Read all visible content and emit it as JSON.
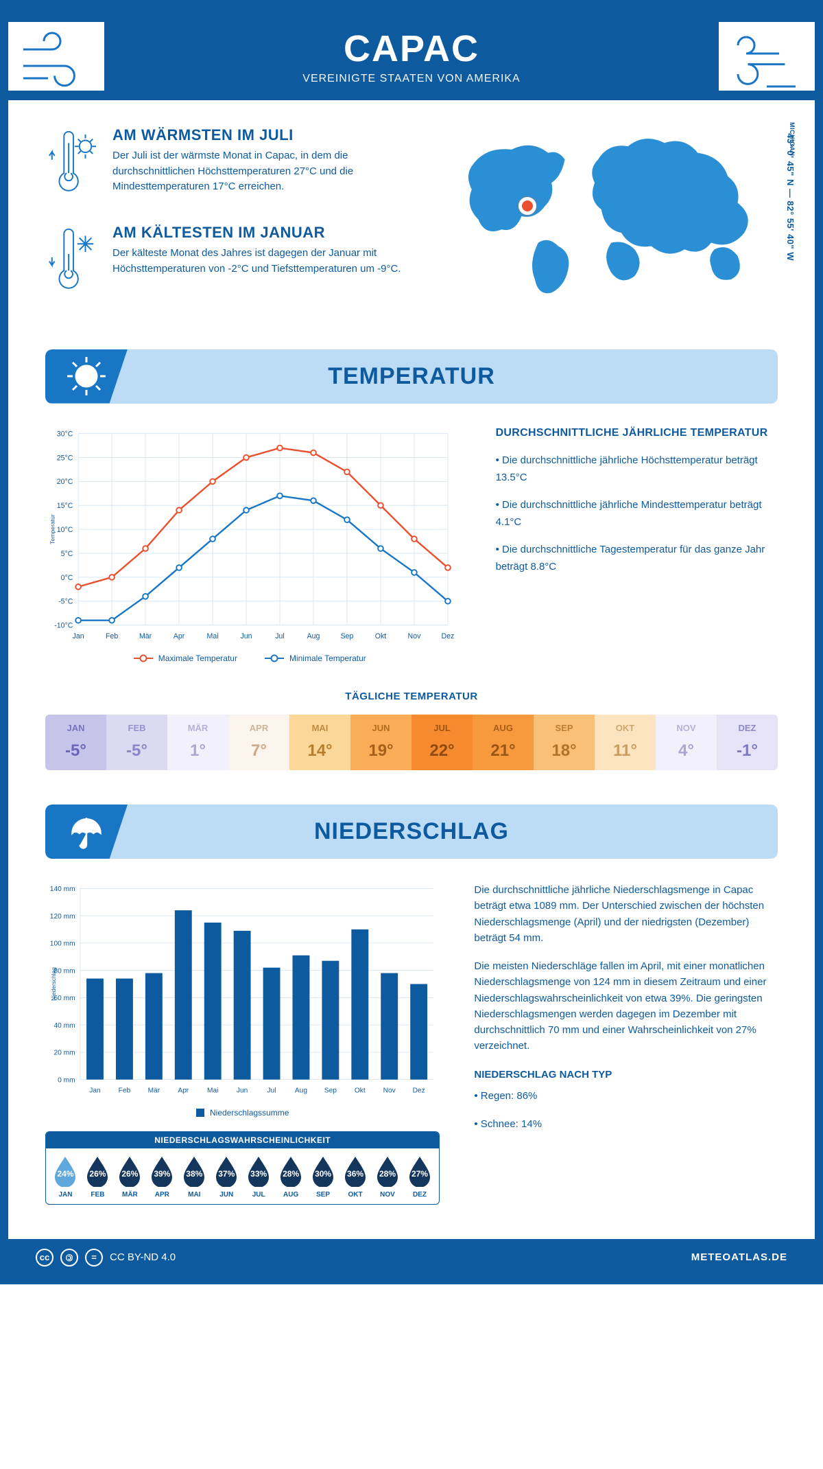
{
  "header": {
    "title": "CAPAC",
    "subtitle": "VEREINIGTE STAATEN VON AMERIKA"
  },
  "location": {
    "coords": "43° 0' 45\" N — 82° 55' 40\" W",
    "region": "MICHIGAN",
    "pin_color": "#e8502f"
  },
  "colors": {
    "brand": "#0e5a9e",
    "brand_light": "#1976c5",
    "banner_bg": "#bcdcf6",
    "max_line": "#e8502f",
    "min_line": "#1976c5",
    "grid": "#d9e6f2"
  },
  "facts": {
    "warm": {
      "title": "AM WÄRMSTEN IM JULI",
      "text": "Der Juli ist der wärmste Monat in Capac, in dem die durchschnittlichen Höchsttemperaturen 27°C und die Mindesttemperaturen 17°C erreichen."
    },
    "cold": {
      "title": "AM KÄLTESTEN IM JANUAR",
      "text": "Der kälteste Monat des Jahres ist dagegen der Januar mit Höchsttemperaturen von -2°C und Tiefsttemperaturen um -9°C."
    }
  },
  "sections": {
    "temperature": "TEMPERATUR",
    "precip": "NIEDERSCHLAG"
  },
  "temp_chart": {
    "ylabel": "Temperatur",
    "ylim": [
      -10,
      30
    ],
    "ytick_step": 5,
    "months": [
      "Jan",
      "Feb",
      "Mär",
      "Apr",
      "Mai",
      "Jun",
      "Jul",
      "Aug",
      "Sep",
      "Okt",
      "Nov",
      "Dez"
    ],
    "max_values": [
      -2,
      0,
      6,
      14,
      20,
      25,
      27,
      26,
      22,
      15,
      8,
      2
    ],
    "min_values": [
      -9,
      -9,
      -4,
      2,
      8,
      14,
      17,
      16,
      12,
      6,
      1,
      -5
    ],
    "legend_max": "Maximale Temperatur",
    "legend_min": "Minimale Temperatur",
    "line_width": 2.5,
    "marker_size": 4
  },
  "temp_text": {
    "title": "DURCHSCHNITTLICHE JÄHRLICHE TEMPERATUR",
    "b1": "• Die durchschnittliche jährliche Höchsttemperatur beträgt 13.5°C",
    "b2": "• Die durchschnittliche jährliche Mindesttemperatur beträgt 4.1°C",
    "b3": "• Die durchschnittliche Tagestemperatur für das ganze Jahr beträgt 8.8°C"
  },
  "daily_temp": {
    "title": "TÄGLICHE TEMPERATUR",
    "months": [
      "JAN",
      "FEB",
      "MÄR",
      "APR",
      "MAI",
      "JUN",
      "JUL",
      "AUG",
      "SEP",
      "OKT",
      "NOV",
      "DEZ"
    ],
    "values": [
      "-5°",
      "-5°",
      "1°",
      "7°",
      "14°",
      "19°",
      "22°",
      "21°",
      "18°",
      "11°",
      "4°",
      "-1°"
    ],
    "bg_colors": [
      "#c7c4ea",
      "#dcdaf2",
      "#f2f0fa",
      "#faf4ec",
      "#fcd79a",
      "#faad56",
      "#f58b2e",
      "#f79a3e",
      "#fbc077",
      "#fde4c0",
      "#f2f0fa",
      "#e5e3f5"
    ],
    "text_colors": [
      "#6a65b8",
      "#8a86c9",
      "#a9a6d4",
      "#c9a989",
      "#b77f2d",
      "#a6601a",
      "#8f4a10",
      "#9a5515",
      "#b07428",
      "#c99c60",
      "#a9a6d4",
      "#7e7ac2"
    ]
  },
  "precip_chart": {
    "ylabel": "Niederschlag",
    "ylim": [
      0,
      140
    ],
    "ytick_step": 20,
    "months": [
      "Jan",
      "Feb",
      "Mär",
      "Apr",
      "Mai",
      "Jun",
      "Jul",
      "Aug",
      "Sep",
      "Okt",
      "Nov",
      "Dez"
    ],
    "values": [
      74,
      74,
      78,
      124,
      115,
      109,
      82,
      91,
      87,
      110,
      78,
      70
    ],
    "bar_color": "#0e5a9e",
    "legend": "Niederschlagssumme"
  },
  "precip_text": {
    "p1": "Die durchschnittliche jährliche Niederschlagsmenge in Capac beträgt etwa 1089 mm. Der Unterschied zwischen der höchsten Niederschlagsmenge (April) und der niedrigsten (Dezember) beträgt 54 mm.",
    "p2": "Die meisten Niederschläge fallen im April, mit einer monatlichen Niederschlagsmenge von 124 mm in diesem Zeitraum und einer Niederschlagswahrscheinlichkeit von etwa 39%. Die geringsten Niederschlagsmengen werden dagegen im Dezember mit durchschnittlich 70 mm und einer Wahrscheinlichkeit von 27% verzeichnet.",
    "type_title": "NIEDERSCHLAG NACH TYP",
    "type1": "• Regen: 86%",
    "type2": "• Schnee: 14%"
  },
  "precip_prob": {
    "title": "NIEDERSCHLAGSWAHRSCHEINLICHKEIT",
    "months": [
      "JAN",
      "FEB",
      "MÄR",
      "APR",
      "MAI",
      "JUN",
      "JUL",
      "AUG",
      "SEP",
      "OKT",
      "NOV",
      "DEZ"
    ],
    "values": [
      "24%",
      "26%",
      "26%",
      "39%",
      "38%",
      "37%",
      "33%",
      "28%",
      "30%",
      "36%",
      "28%",
      "27%"
    ],
    "drop_colors": [
      "#5fa8dd",
      "#14365c",
      "#14365c",
      "#14365c",
      "#14365c",
      "#14365c",
      "#14365c",
      "#14365c",
      "#14365c",
      "#14365c",
      "#14365c",
      "#14365c"
    ]
  },
  "footer": {
    "license": "CC BY-ND 4.0",
    "site": "METEOATLAS.DE"
  }
}
